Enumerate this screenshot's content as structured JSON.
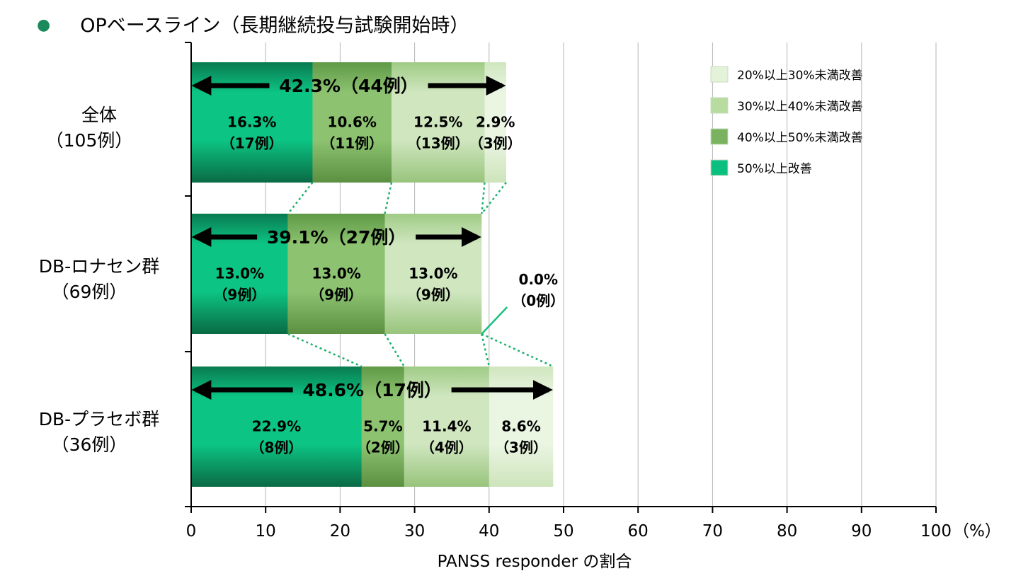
{
  "page_title": "OPベースライン（長期継続投与試験開始時）",
  "chart_data": {
    "type": "bar",
    "orientation": "horizontal",
    "stacked": true,
    "title": "OPベースライン（長期継続投与試験開始時）",
    "xlabel": "PANSS responder の割合",
    "xunit": "（%）",
    "xlim": [
      0,
      100
    ],
    "xticks": [
      "0",
      "10",
      "20",
      "30",
      "40",
      "50",
      "60",
      "70",
      "80",
      "90",
      "100"
    ],
    "grid": true,
    "legend_position": "top-right",
    "categories": [
      {
        "name": "全体",
        "n": "（105例）",
        "total_label": "42.3%（44例）"
      },
      {
        "name": "DB-ロナセン群",
        "n": "（69例）",
        "total_label": "39.1%（27例）"
      },
      {
        "name": "DB-プラセボ群",
        "n": "（36例）",
        "total_label": "48.6%（17例）"
      }
    ],
    "series": [
      {
        "name": "50%以上改善",
        "color": "#0abf80",
        "values": [
          16.3,
          13.0,
          22.9
        ],
        "pct_labels": [
          "16.3%",
          "13.0%",
          "22.9%"
        ],
        "n_labels": [
          "（17例）",
          "（9例）",
          "（8例）"
        ]
      },
      {
        "name": "40%以上50%未満改善",
        "color": "#7ab260",
        "values": [
          10.6,
          13.0,
          5.7
        ],
        "pct_labels": [
          "10.6%",
          "13.0%",
          "5.7%"
        ],
        "n_labels": [
          "（11例）",
          "（9例）",
          "（2例）"
        ]
      },
      {
        "name": "30%以上40%未満改善",
        "color": "#b8dca0",
        "values": [
          12.5,
          13.0,
          11.4
        ],
        "pct_labels": [
          "12.5%",
          "13.0%",
          "11.4%"
        ],
        "n_labels": [
          "（13例）",
          "（9例）",
          "（4例）"
        ]
      },
      {
        "name": "20%以上30%未満改善",
        "color": "#e4f2da",
        "values": [
          2.9,
          0.0,
          8.6
        ],
        "pct_labels": [
          "2.9%",
          "0.0%",
          "8.6%"
        ],
        "n_labels": [
          "（3例）",
          "（0例）",
          "（3例）"
        ]
      }
    ],
    "legend_order": [
      "20%以上30%未満改善",
      "30%以上40%未満改善",
      "40%以上50%未満改善",
      "50%以上改善"
    ]
  }
}
